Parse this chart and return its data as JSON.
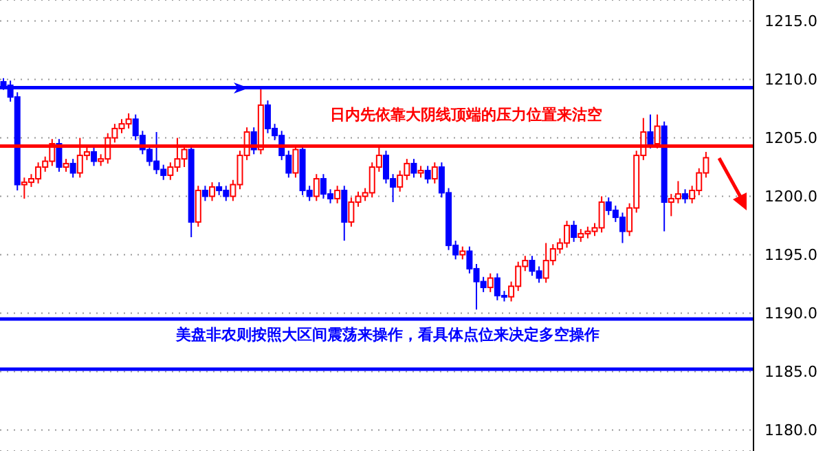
{
  "chart_data": {
    "type": "candlestick",
    "annotations": [
      "日内先依靠大阴线顶端的压力位置来沽空",
      "美盘非农则按照大区间震荡来操作，看具体点位来决定多空操作"
    ],
    "categories": [
      null,
      null,
      null,
      null,
      null,
      null,
      null,
      null,
      null,
      null,
      null,
      null,
      null,
      null,
      null,
      null,
      null,
      null,
      null,
      null,
      null,
      null,
      null,
      null,
      null,
      null,
      null,
      null,
      null,
      null,
      null,
      null,
      null,
      null,
      null,
      null,
      null,
      null,
      null,
      null,
      null,
      null,
      null,
      null,
      null,
      null,
      null,
      null,
      null,
      null,
      null,
      null,
      null,
      null,
      null,
      null,
      null,
      null,
      null,
      null,
      null,
      null,
      null,
      null,
      null,
      null,
      null,
      null,
      null,
      null,
      null,
      null,
      null,
      null,
      null,
      null,
      null,
      null,
      null,
      null,
      null,
      null,
      null,
      null,
      null,
      null,
      null,
      null,
      null,
      null,
      null,
      null,
      null,
      null,
      null,
      null,
      null,
      null,
      null,
      null,
      null,
      null
    ],
    "ohlc": [
      [
        1209.8,
        1210.1,
        1209.1,
        1209.5
      ],
      [
        1209.5,
        1209.9,
        1208.1,
        1208.5
      ],
      [
        1208.5,
        1208.9,
        1200.5,
        1201
      ],
      [
        1201,
        1201.6,
        1199.8,
        1201.2
      ],
      [
        1201.2,
        1201.9,
        1200.8,
        1201.5
      ],
      [
        1201.5,
        1202.9,
        1201.1,
        1202.5
      ],
      [
        1202.5,
        1203.4,
        1202.1,
        1203
      ],
      [
        1203,
        1204.9,
        1202.6,
        1204.5
      ],
      [
        1204.5,
        1204.9,
        1202.1,
        1202.5
      ],
      [
        1202.5,
        1203.2,
        1202.1,
        1202.8
      ],
      [
        1202.8,
        1203.2,
        1201.6,
        1202
      ],
      [
        1202,
        1205,
        1201.6,
        1203.5
      ],
      [
        1203.5,
        1204.2,
        1203.1,
        1203.8
      ],
      [
        1203.8,
        1204.2,
        1202.6,
        1203
      ],
      [
        1203,
        1203.6,
        1202.6,
        1203.2
      ],
      [
        1203.2,
        1205.4,
        1202.8,
        1205
      ],
      [
        1205,
        1206.2,
        1204.6,
        1205.8
      ],
      [
        1205.8,
        1206.6,
        1205.4,
        1206.2
      ],
      [
        1206.2,
        1207.1,
        1205.8,
        1206.6
      ],
      [
        1206.6,
        1207,
        1204.8,
        1205.2
      ],
      [
        1205.2,
        1205.6,
        1203.6,
        1204
      ],
      [
        1204,
        1204.4,
        1202.6,
        1203
      ],
      [
        1203,
        1205.5,
        1201.9,
        1202.3
      ],
      [
        1202.3,
        1202.7,
        1201.4,
        1201.8
      ],
      [
        1201.8,
        1202.9,
        1201.4,
        1202.5
      ],
      [
        1202.5,
        1205,
        1202.1,
        1203.2
      ],
      [
        1203.2,
        1204.4,
        1202.5,
        1204
      ],
      [
        1204,
        1204.4,
        1196.5,
        1197.8
      ],
      [
        1197.8,
        1200.9,
        1197.4,
        1200.5
      ],
      [
        1200.5,
        1200.9,
        1199.6,
        1200
      ],
      [
        1200,
        1201.2,
        1199.6,
        1200.8
      ],
      [
        1200.8,
        1201.2,
        1200.1,
        1200.5
      ],
      [
        1200.5,
        1200.9,
        1199.6,
        1200
      ],
      [
        1200,
        1201.4,
        1199.6,
        1201
      ],
      [
        1201,
        1203.9,
        1200.6,
        1203.5
      ],
      [
        1203.5,
        1205.9,
        1203.1,
        1205.5
      ],
      [
        1205.5,
        1205.9,
        1203.6,
        1204
      ],
      [
        1204,
        1209.2,
        1203.6,
        1207.8
      ],
      [
        1207.8,
        1208.2,
        1205.4,
        1205.8
      ],
      [
        1205.8,
        1206.2,
        1204.8,
        1205.2
      ],
      [
        1205.2,
        1205.6,
        1203.1,
        1203.5
      ],
      [
        1203.5,
        1203.9,
        1201.6,
        1202
      ],
      [
        1202,
        1204.4,
        1201.6,
        1204
      ],
      [
        1204,
        1204.4,
        1200.1,
        1200.5
      ],
      [
        1200.5,
        1200.9,
        1199.6,
        1200
      ],
      [
        1200,
        1201.9,
        1199.6,
        1201.5
      ],
      [
        1201.5,
        1201.9,
        1199.8,
        1200.2
      ],
      [
        1200.2,
        1200.6,
        1199.4,
        1199.8
      ],
      [
        1199.8,
        1200.9,
        1199.4,
        1200.5
      ],
      [
        1200.5,
        1200.9,
        1196.2,
        1197.8
      ],
      [
        1197.8,
        1199.9,
        1197.4,
        1199.5
      ],
      [
        1199.5,
        1200.4,
        1199.1,
        1200
      ],
      [
        1200,
        1200.7,
        1199.6,
        1200.3
      ],
      [
        1200.3,
        1202.9,
        1199.9,
        1202.5
      ],
      [
        1202.5,
        1204.3,
        1202.1,
        1203.5
      ],
      [
        1203.5,
        1203.9,
        1201.1,
        1201.5
      ],
      [
        1201.5,
        1201.9,
        1199.5,
        1200.8
      ],
      [
        1200.8,
        1202.2,
        1200.4,
        1201.8
      ],
      [
        1201.8,
        1203.2,
        1201.4,
        1202.8
      ],
      [
        1202.8,
        1203.2,
        1201.6,
        1202
      ],
      [
        1202,
        1202.6,
        1201.6,
        1202.2
      ],
      [
        1202.2,
        1202.6,
        1201.1,
        1201.5
      ],
      [
        1201.5,
        1202.9,
        1201.1,
        1202.5
      ],
      [
        1202.5,
        1202.9,
        1199.9,
        1200.3
      ],
      [
        1200.3,
        1200.7,
        1195.4,
        1195.8
      ],
      [
        1195.8,
        1196.2,
        1194.6,
        1195
      ],
      [
        1195,
        1195.7,
        1194.6,
        1195.3
      ],
      [
        1195.3,
        1195.7,
        1193.4,
        1193.8
      ],
      [
        1193.8,
        1194.2,
        1190.3,
        1192.7
      ],
      [
        1192.7,
        1193.1,
        1191.8,
        1192.2
      ],
      [
        1192.2,
        1193.4,
        1191.8,
        1193
      ],
      [
        1193,
        1193.4,
        1191.1,
        1191.5
      ],
      [
        1191.5,
        1191.9,
        1191,
        1191.4
      ],
      [
        1191.4,
        1192.7,
        1191,
        1192.3
      ],
      [
        1192.3,
        1194.4,
        1191.9,
        1194
      ],
      [
        1194,
        1194.9,
        1193.6,
        1194.5
      ],
      [
        1194.5,
        1194.9,
        1193.2,
        1193.6
      ],
      [
        1193.6,
        1194,
        1192.6,
        1193
      ],
      [
        1193,
        1196,
        1192.6,
        1194.5
      ],
      [
        1194.5,
        1195.9,
        1194.1,
        1195.5
      ],
      [
        1195.5,
        1196.4,
        1195.1,
        1196
      ],
      [
        1196,
        1197.9,
        1195.6,
        1197.5
      ],
      [
        1197.5,
        1197.9,
        1196.1,
        1196.5
      ],
      [
        1196.5,
        1197.2,
        1196.1,
        1196.8
      ],
      [
        1196.8,
        1197.4,
        1196.4,
        1197
      ],
      [
        1197,
        1197.7,
        1196.6,
        1197.3
      ],
      [
        1197.3,
        1200,
        1196.9,
        1199.5
      ],
      [
        1199.5,
        1199.9,
        1198.4,
        1198.8
      ],
      [
        1198.8,
        1199.2,
        1197.8,
        1198.2
      ],
      [
        1198.2,
        1198.6,
        1196,
        1197
      ],
      [
        1197,
        1199.4,
        1196.6,
        1199
      ],
      [
        1199,
        1203.9,
        1198.6,
        1203.5
      ],
      [
        1203.5,
        1206.7,
        1203.1,
        1205.5
      ],
      [
        1205.5,
        1207,
        1204.1,
        1204.5
      ],
      [
        1204.5,
        1207,
        1204.1,
        1206
      ],
      [
        1206,
        1206.4,
        1197,
        1199.5
      ],
      [
        1199.5,
        1200.2,
        1198.3,
        1199.8
      ],
      [
        1199.8,
        1201.3,
        1199.4,
        1200.2
      ],
      [
        1200.2,
        1200.6,
        1199.4,
        1199.8
      ],
      [
        1199.8,
        1200.9,
        1199.4,
        1200.5
      ],
      [
        1200.5,
        1202.4,
        1200.1,
        1202
      ],
      [
        1202,
        1203.8,
        1201.6,
        1203.3
      ]
    ],
    "colors": [
      "#0000ff",
      "#0000ff",
      "#0000ff",
      "#ff0000",
      "#ff0000",
      "#ff0000",
      "#ff0000",
      "#ff0000",
      "#0000ff",
      "#ff0000",
      "#0000ff",
      "#ff0000",
      "#ff0000",
      "#0000ff",
      "#ff0000",
      "#ff0000",
      "#ff0000",
      "#ff0000",
      "#ff0000",
      "#0000ff",
      "#0000ff",
      "#0000ff",
      "#0000ff",
      "#0000ff",
      "#ff0000",
      "#ff0000",
      "#ff0000",
      "#0000ff",
      "#ff0000",
      "#0000ff",
      "#ff0000",
      "#0000ff",
      "#0000ff",
      "#ff0000",
      "#ff0000",
      "#ff0000",
      "#0000ff",
      "#ff0000",
      "#0000ff",
      "#0000ff",
      "#0000ff",
      "#0000ff",
      "#ff0000",
      "#0000ff",
      "#0000ff",
      "#ff0000",
      "#0000ff",
      "#0000ff",
      "#ff0000",
      "#0000ff",
      "#ff0000",
      "#ff0000",
      "#ff0000",
      "#ff0000",
      "#ff0000",
      "#0000ff",
      "#0000ff",
      "#ff0000",
      "#ff0000",
      "#0000ff",
      "#ff0000",
      "#0000ff",
      "#ff0000",
      "#0000ff",
      "#0000ff",
      "#0000ff",
      "#ff0000",
      "#0000ff",
      "#0000ff",
      "#0000ff",
      "#ff0000",
      "#0000ff",
      "#0000ff",
      "#ff0000",
      "#ff0000",
      "#ff0000",
      "#0000ff",
      "#0000ff",
      "#ff0000",
      "#ff0000",
      "#ff0000",
      "#ff0000",
      "#0000ff",
      "#ff0000",
      "#ff0000",
      "#ff0000",
      "#ff0000",
      "#0000ff",
      "#0000ff",
      "#0000ff",
      "#ff0000",
      "#ff0000",
      "#ff0000",
      "#0000ff",
      "#ff0000",
      "#0000ff",
      "#ff0000",
      "#ff0000",
      "#0000ff",
      "#ff0000",
      "#ff0000",
      "#ff0000"
    ],
    "ylim": [
      1178.2,
      1216.8
    ],
    "yticks": [
      {
        "value": 1180,
        "label": "1180.0"
      },
      {
        "value": 1185,
        "label": "1185.0"
      },
      {
        "value": 1190,
        "label": "1190.0"
      },
      {
        "value": 1195,
        "label": "1195.0"
      },
      {
        "value": 1200,
        "label": "1200.0"
      },
      {
        "value": 1205,
        "label": "1205.0"
      },
      {
        "value": 1210,
        "label": "1210.0"
      },
      {
        "value": 1215,
        "label": "1215.0"
      }
    ],
    "tick_labels": "y",
    "grid": "y",
    "ref_lines": [
      {
        "axis": "y",
        "value": 1209.3,
        "color": "#0000ff"
      },
      {
        "axis": "y",
        "value": 1204.3,
        "color": "#ff0000"
      },
      {
        "axis": "y",
        "value": 1189.5,
        "color": "#0000ff"
      },
      {
        "axis": "y",
        "value": 1185.2,
        "color": "#0000ff"
      }
    ]
  }
}
